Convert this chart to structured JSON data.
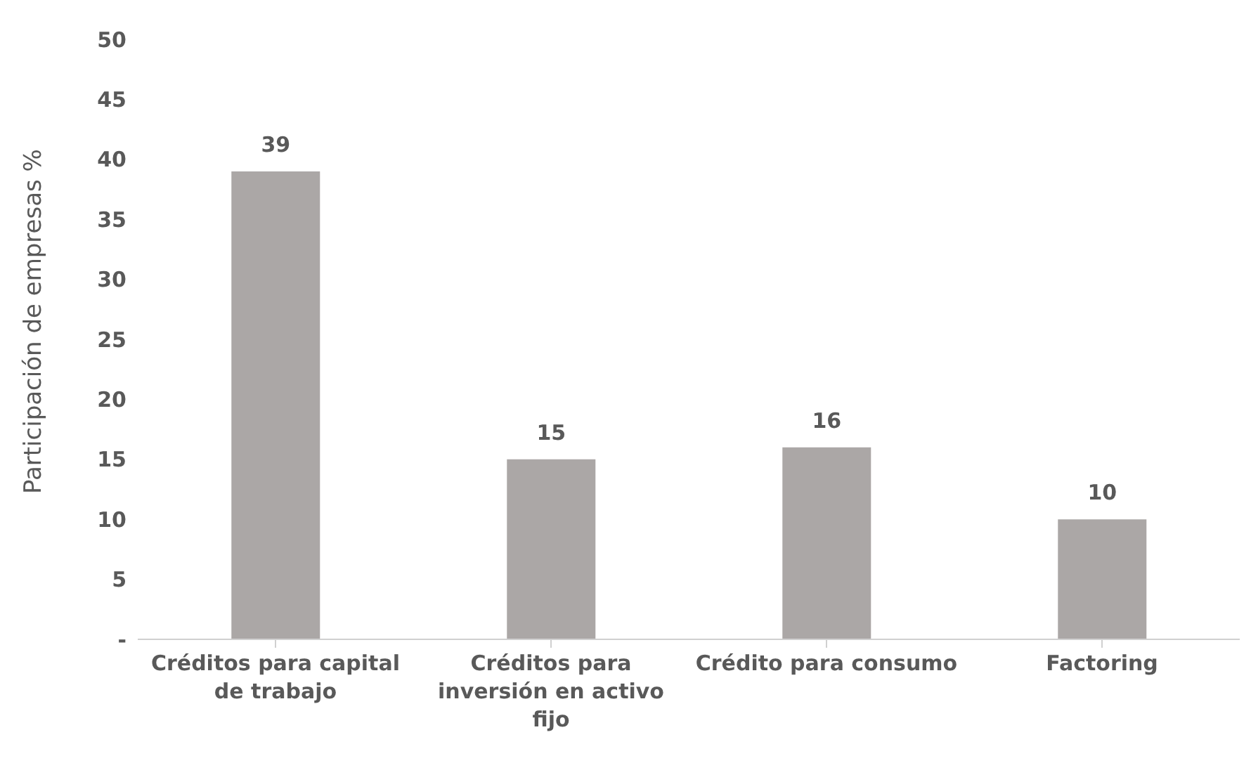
{
  "chart_data": {
    "type": "bar",
    "ylabel": "Participación de empresas %",
    "categories": [
      "Créditos para capital de trabajo",
      "Créditos para inversión en activo fijo",
      "Crédito para consumo",
      "Factoring"
    ],
    "values": [
      39,
      15,
      16,
      10
    ],
    "color": "#aba7a6",
    "data_labels": true,
    "ylim": [
      0,
      50
    ],
    "yticks": [
      {
        "value": 0,
        "label": "-"
      },
      5,
      10,
      15,
      20,
      25,
      30,
      35,
      40,
      45,
      50
    ],
    "grid": false
  }
}
